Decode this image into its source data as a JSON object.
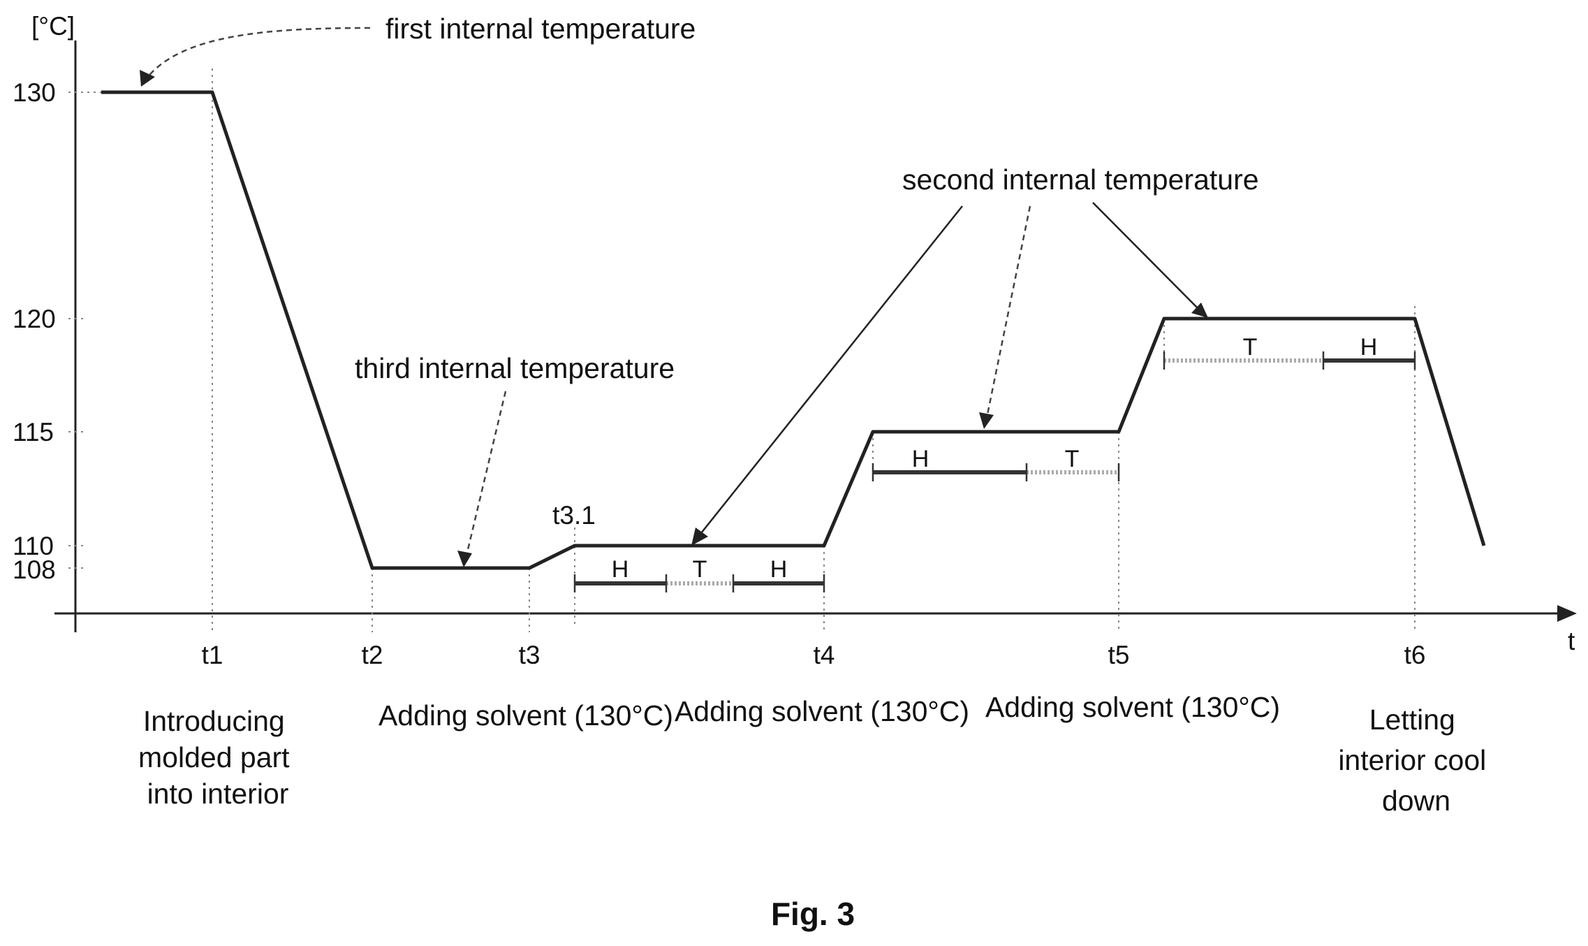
{
  "figure": {
    "caption": "Fig. 3",
    "y_axis_unit": "[°C]",
    "x_axis_label": "t",
    "y_ticks": [
      "130",
      "120",
      "115",
      "110",
      "108"
    ],
    "x_ticks": [
      "t1",
      "t2",
      "t3",
      "t3.1",
      "t4",
      "t5",
      "t6"
    ],
    "annotations": {
      "first": "first internal temperature",
      "second": "second internal temperature",
      "third": "third internal temperature"
    },
    "segments": {
      "s1": [
        "H",
        "T",
        "H"
      ],
      "s2": [
        "H",
        "T"
      ],
      "s3": [
        "T",
        "H"
      ]
    },
    "phases": {
      "p1": [
        "Introducing",
        "molded part",
        "into interior"
      ],
      "p2": "Adding solvent (130°C)",
      "p3": "Adding solvent (130°C)",
      "p4": "Adding solvent (130°C)",
      "p5": [
        "Letting",
        "interior cool",
        "down"
      ]
    }
  },
  "chart_data": {
    "type": "line",
    "xlabel": "t",
    "ylabel": "[°C]",
    "y_ticks": [
      130,
      120,
      115,
      110,
      108
    ],
    "x_ticks": [
      "t1",
      "t2",
      "t3",
      "t3.1",
      "t4",
      "t5",
      "t6"
    ],
    "series": [
      {
        "points": [
          [
            "start",
            130
          ],
          [
            "t1",
            130
          ],
          [
            "t2",
            108
          ],
          [
            "t3",
            108
          ],
          [
            "t3.1",
            110
          ],
          [
            "t4",
            110
          ],
          [
            "after t4",
            115
          ],
          [
            "t5",
            115
          ],
          [
            "after t5",
            120
          ],
          [
            "t6",
            120
          ],
          [
            "end",
            110
          ]
        ]
      }
    ]
  }
}
